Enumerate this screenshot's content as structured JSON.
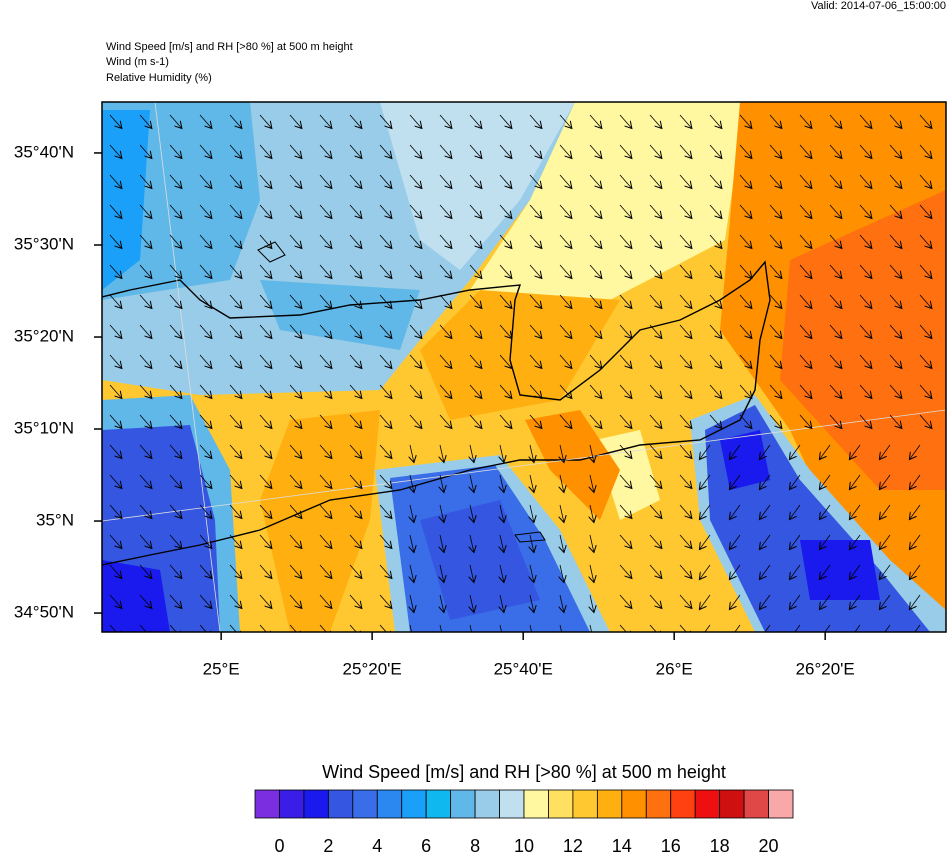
{
  "header": {
    "valid": "Valid: 2014-07-06_15:00:00",
    "title_lines": [
      "Wind Speed [m/s] and RH [>80 %] at 500 m height",
      "Wind   (m s-1)",
      "Relative Humidity   (%)"
    ]
  },
  "map": {
    "xlim": [
      24.737,
      26.6
    ],
    "ylim": [
      34.799,
      35.759
    ],
    "xticks": [
      {
        "value": 25,
        "label": "25°E"
      },
      {
        "value": 25.3333,
        "label": "25°20'E"
      },
      {
        "value": 25.6667,
        "label": "25°40'E"
      },
      {
        "value": 26,
        "label": "26°E"
      },
      {
        "value": 26.3333,
        "label": "26°20'E"
      }
    ],
    "yticks": [
      {
        "value": 34.8333,
        "label": "34°50'N"
      },
      {
        "value": 35,
        "label": "35°N"
      },
      {
        "value": 35.1667,
        "label": "35°10'N"
      },
      {
        "value": 35.3333,
        "label": "35°20'N"
      },
      {
        "value": 35.5,
        "label": "35°30'N"
      },
      {
        "value": 35.6667,
        "label": "35°40'N"
      }
    ]
  },
  "colorbar": {
    "title": "Wind Speed [m/s] and RH [>80 %] at 500 m height",
    "colors": [
      "#7a2ee0",
      "#3a1ee8",
      "#1a1aee",
      "#3456e0",
      "#3a6ee8",
      "#2a88f0",
      "#1aa0f8",
      "#10b8f0",
      "#60b8e8",
      "#98cce8",
      "#c0e0f0",
      "#fff8a0",
      "#ffe060",
      "#ffc830",
      "#ffb010",
      "#ff9000",
      "#ff7010",
      "#ff4010",
      "#ee1010",
      "#d01010",
      "#e04848",
      "#f8a8a8"
    ],
    "ticks": [
      0,
      2,
      4,
      6,
      8,
      10,
      12,
      14,
      16,
      18,
      20
    ]
  }
}
